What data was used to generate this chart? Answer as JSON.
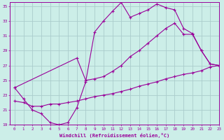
{
  "xlabel": "Windchill (Refroidissement éolien,°C)",
  "xlim": [
    -0.5,
    23
  ],
  "ylim": [
    19,
    35.5
  ],
  "bg_color": "#cceee8",
  "grid_color": "#aacccc",
  "line_color": "#990099",
  "line1_x": [
    0,
    1,
    2,
    3,
    4,
    5,
    6,
    7,
    8,
    9,
    10,
    11,
    12,
    13,
    14,
    15,
    16,
    17,
    18,
    19,
    20,
    21,
    22,
    23
  ],
  "line1_y": [
    24.0,
    22.5,
    21.0,
    20.5,
    19.3,
    19.0,
    19.3,
    21.3,
    24.8,
    31.5,
    33.0,
    34.3,
    35.5,
    33.5,
    34.0,
    34.5,
    35.3,
    34.8,
    34.5,
    32.0,
    31.3,
    29.0,
    27.2,
    27.0
  ],
  "line2_x": [
    0,
    7,
    8,
    9,
    10,
    11,
    12,
    13,
    14,
    15,
    16,
    17,
    18,
    19,
    20,
    21,
    22,
    23
  ],
  "line2_y": [
    24.0,
    28.0,
    25.0,
    25.2,
    25.5,
    26.2,
    27.0,
    28.2,
    29.0,
    30.0,
    31.0,
    32.0,
    32.7,
    31.2,
    31.2,
    29.0,
    27.2,
    27.0
  ],
  "line3_x": [
    0,
    1,
    2,
    3,
    4,
    5,
    6,
    7,
    8,
    9,
    10,
    11,
    12,
    13,
    14,
    15,
    16,
    17,
    18,
    19,
    20,
    21,
    22,
    23
  ],
  "line3_y": [
    22.2,
    22.0,
    21.5,
    21.5,
    21.8,
    21.8,
    22.0,
    22.2,
    22.5,
    22.8,
    23.0,
    23.2,
    23.5,
    23.8,
    24.2,
    24.5,
    24.8,
    25.2,
    25.5,
    25.8,
    26.0,
    26.3,
    26.8,
    27.0
  ],
  "yticks": [
    19,
    21,
    23,
    25,
    27,
    29,
    31,
    33,
    35
  ]
}
